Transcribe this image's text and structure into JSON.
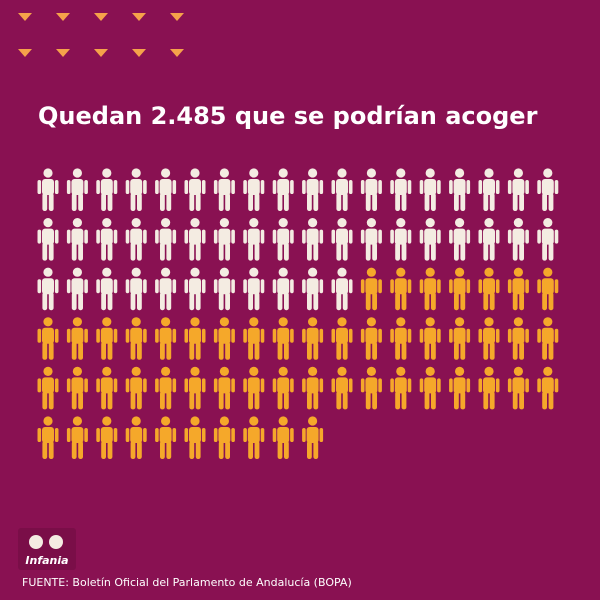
{
  "chart_data": {
    "type": "pictogram",
    "title": "Quedan 2.485 que se podrían acoger",
    "values": [
      47,
      53
    ],
    "colors": [
      "#f4ece2",
      "#f5a82a"
    ],
    "source": "FUENTE: Boletín Oficial del Parlamento de Andalucía (BOPA)"
  },
  "logo": "Infania"
}
